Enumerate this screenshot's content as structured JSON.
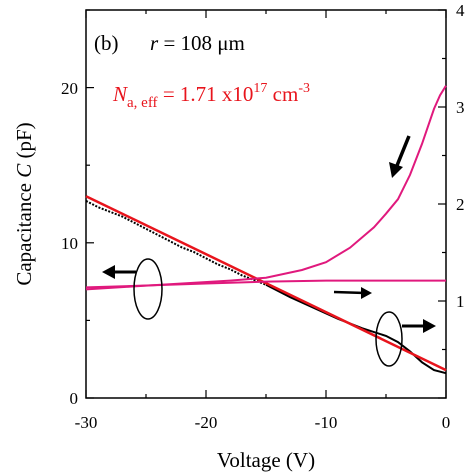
{
  "chart_data": {
    "type": "line",
    "panel_label": "(b)",
    "radius_text": {
      "symbol": "r",
      "rest": " = 108 μm"
    },
    "na_text": {
      "symbol": "N",
      "subscript": "a, eff",
      "value": " = 1.71 x10",
      "exponent": "17",
      "unit": " cm",
      "unit_exponent": "-3"
    },
    "xlabel": "Voltage (V)",
    "ylabel": {
      "prefix": "Capacitance ",
      "symbol": "C",
      "suffix": " (pF)"
    },
    "xlim": [
      -30,
      0
    ],
    "ylim_left": [
      0,
      25
    ],
    "ylim_right": [
      0,
      4
    ],
    "x_ticks": [
      "-30",
      "-20",
      "-10",
      "0"
    ],
    "y_left_ticks": [
      "0",
      "10",
      "20"
    ],
    "y_right_ticks": [
      "1",
      "2",
      "3",
      "4"
    ],
    "colors": {
      "capacitance": "#000000",
      "fit": "#e8141c",
      "inverse_square": "#e0197d"
    },
    "series": [
      {
        "axis": "left",
        "color": "#000000",
        "style": "dotted",
        "x": [
          -30,
          -29,
          -28,
          -27,
          -26,
          -25,
          -24,
          -23,
          -22,
          -21,
          -20,
          -19,
          -18,
          -17,
          -16,
          -15
        ],
        "y": [
          12.7,
          12.3,
          12.0,
          11.7,
          11.3,
          10.9,
          10.5,
          10.1,
          9.7,
          9.4,
          9.0,
          8.6,
          8.3,
          7.9,
          7.6,
          7.3
        ]
      },
      {
        "axis": "left",
        "color": "#000000",
        "style": "solid",
        "x": [
          -15,
          -13,
          -11,
          -9,
          -7,
          -5,
          -4,
          -3,
          -2,
          -1,
          0
        ],
        "y": [
          7.3,
          6.5,
          5.8,
          5.1,
          4.5,
          4.0,
          3.6,
          3.0,
          2.3,
          1.8,
          1.6
        ]
      },
      {
        "axis": "left",
        "color": "#e8141c",
        "style": "solid",
        "x": [
          -30,
          0
        ],
        "y": [
          13.0,
          1.8
        ]
      },
      {
        "axis": "right",
        "color": "#e0197d",
        "style": "solid",
        "x": [
          -30,
          -26,
          -22,
          -18,
          -15,
          -12,
          -10,
          -8,
          -6,
          -5,
          -4,
          -3,
          -2,
          -1,
          -0.5,
          0
        ],
        "y": [
          1.12,
          1.15,
          1.18,
          1.21,
          1.24,
          1.32,
          1.4,
          1.55,
          1.76,
          1.9,
          2.05,
          2.3,
          2.62,
          2.98,
          3.12,
          3.22
        ]
      },
      {
        "axis": "right",
        "color": "#e0197d",
        "style": "solid",
        "x": [
          -30,
          -25,
          -20,
          -15,
          -10,
          -5,
          0
        ],
        "y": [
          1.14,
          1.16,
          1.18,
          1.2,
          1.21,
          1.21,
          1.21
        ]
      }
    ]
  }
}
